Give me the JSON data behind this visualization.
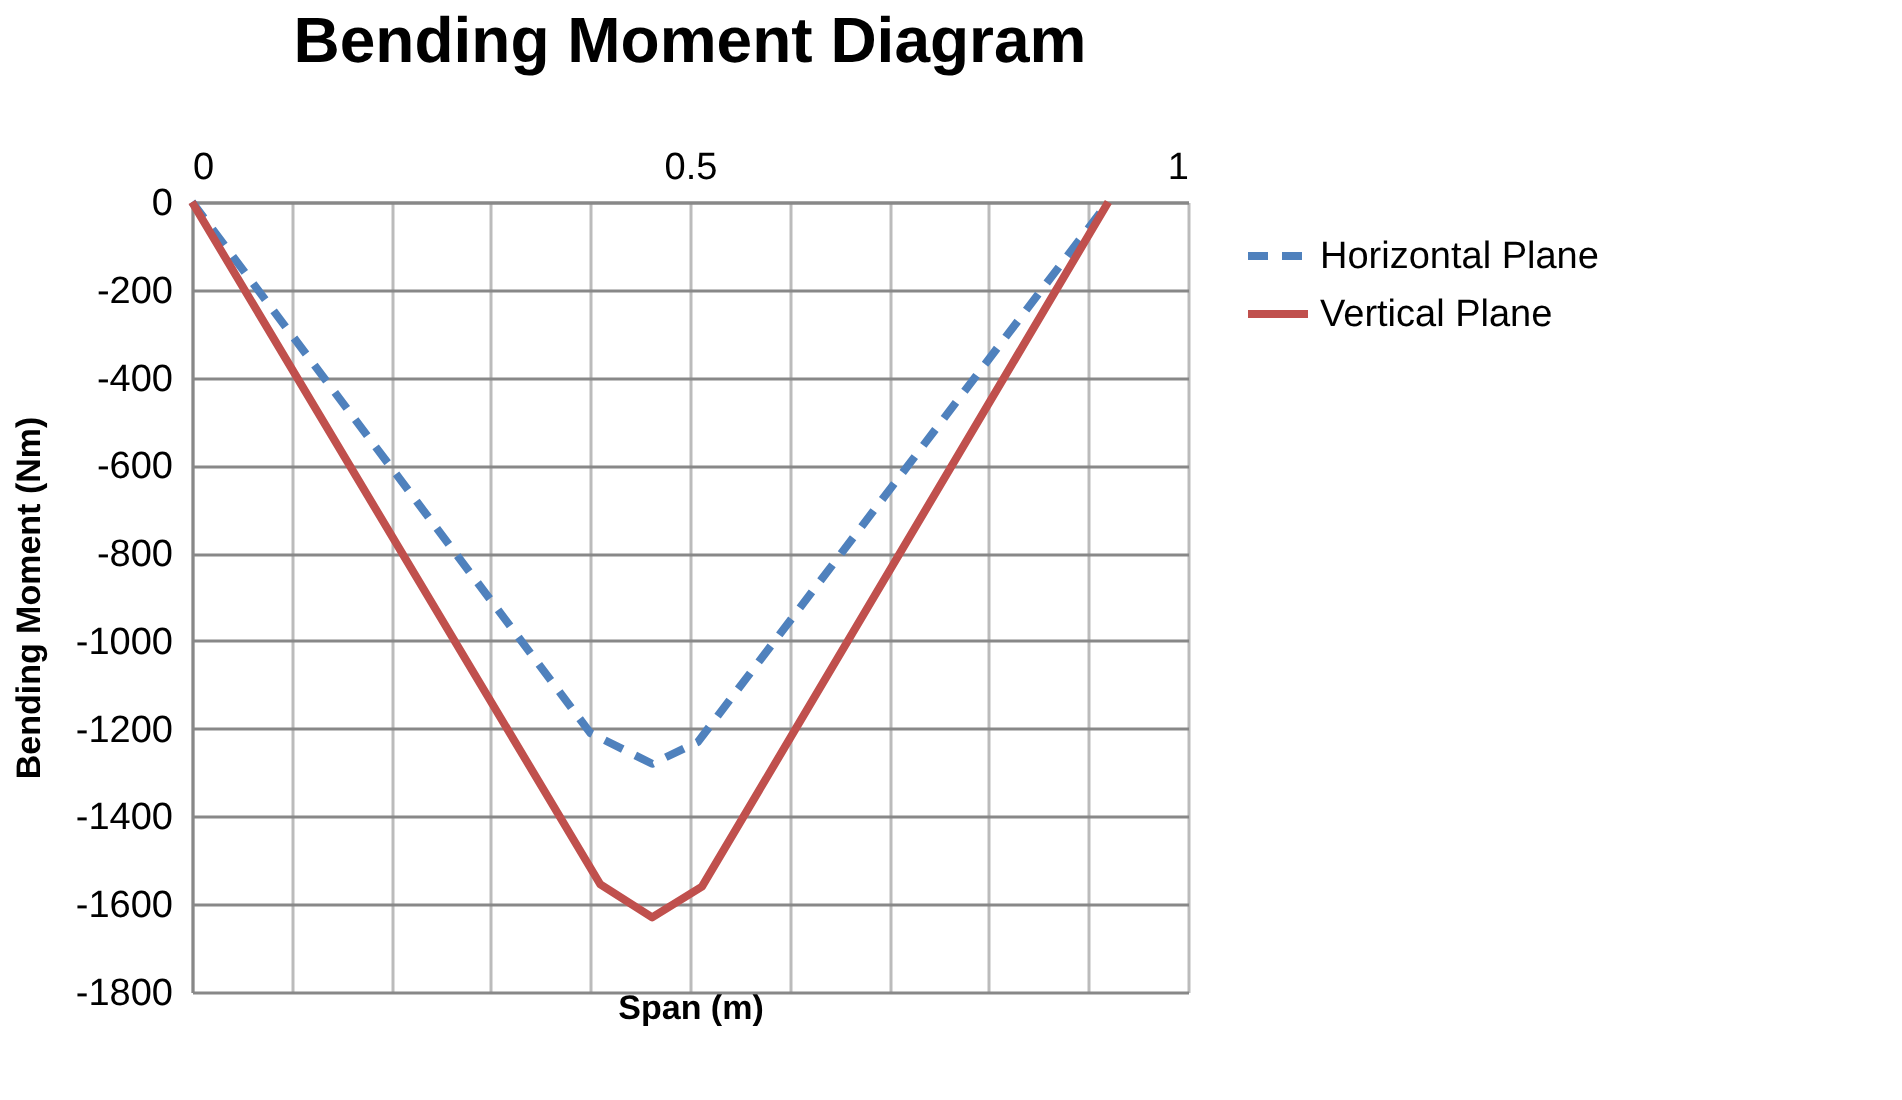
{
  "chart_data": {
    "type": "line",
    "title": "Bending Moment Diagram",
    "xlabel": "Span  (m)",
    "ylabel": "Bending Moment  (Nm)",
    "xlim": [
      0,
      1
    ],
    "xticks": [
      0,
      {
        "value": 0.1,
        "label": null
      },
      {
        "value": 0.2,
        "label": null
      },
      {
        "value": 0.3,
        "label": null
      },
      {
        "value": 0.4,
        "label": null
      },
      0.5,
      {
        "value": 0.6,
        "label": null
      },
      {
        "value": 0.7,
        "label": null
      },
      {
        "value": 0.8,
        "label": null
      },
      {
        "value": 0.9,
        "label": null
      },
      1
    ],
    "ylim": [
      -1800,
      0
    ],
    "yticks": [
      -1800,
      -1600,
      -1400,
      -1200,
      -1000,
      -800,
      -600,
      -400,
      -200,
      0
    ],
    "grid": true,
    "legend": "right",
    "marker": "none",
    "series": [
      {
        "name": "Horizontal Plane",
        "color": "#4f81bd",
        "line_style": "dashed",
        "x": [
          0,
          0.4,
          0.462,
          0.508,
          0.92
        ],
        "values": [
          0,
          -1210,
          -1280,
          -1230,
          0
        ]
      },
      {
        "name": "Vertical Plane",
        "color": "#c0504d",
        "line_style": "solid",
        "x": [
          0,
          0.41,
          0.462,
          0.512,
          0.92
        ],
        "values": [
          0,
          -1555,
          -1630,
          -1560,
          0
        ]
      }
    ]
  }
}
